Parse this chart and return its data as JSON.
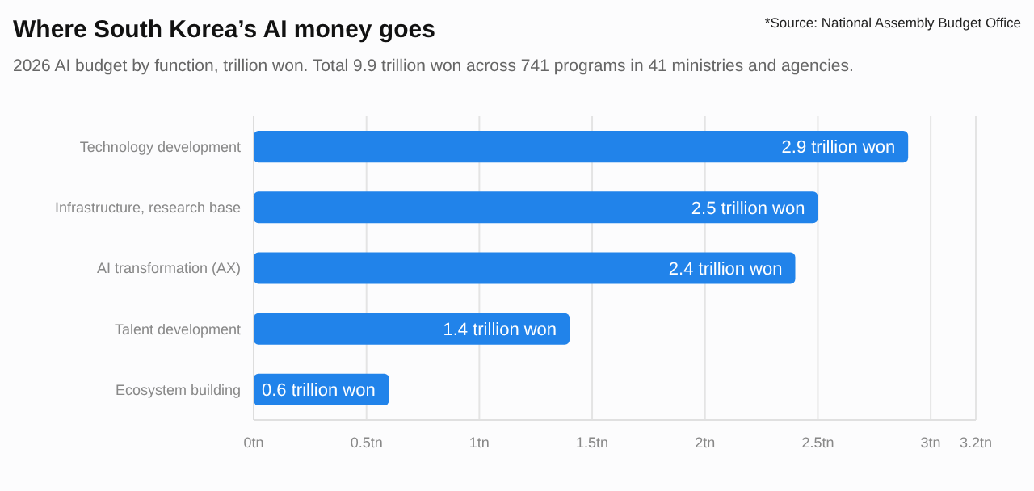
{
  "chart_data": {
    "type": "bar",
    "orientation": "horizontal",
    "title": "Where South Korea’s AI money goes",
    "subtitle": "2026 AI budget by function, trillion won. Total 9.9 trillion won across 741 programs in 41 ministries and agencies.",
    "annotations": [
      "*Source: National Assembly Budget Office"
    ],
    "categories": [
      "Technology development",
      "Infrastructure, research base",
      "AI transformation (AX)",
      "Talent development",
      "Ecosystem building"
    ],
    "values": [
      2.9,
      2.5,
      2.4,
      1.4,
      0.6
    ],
    "value_labels": [
      "2.9 trillion won",
      "2.5 trillion won",
      "2.4 trillion won",
      "1.4 trillion won",
      "0.6 trillion won"
    ],
    "color": "#2183ea",
    "xlim": [
      0,
      3.2
    ],
    "xticks": [
      {
        "value": 0,
        "label": "0tn"
      },
      {
        "value": 0.5,
        "label": "0.5tn"
      },
      {
        "value": 1,
        "label": "1tn"
      },
      {
        "value": 1.5,
        "label": "1.5tn"
      },
      {
        "value": 2,
        "label": "2tn"
      },
      {
        "value": 2.5,
        "label": "2.5tn"
      },
      {
        "value": 3,
        "label": "3tn"
      },
      {
        "value": 3.2,
        "label": "3.2tn"
      }
    ],
    "grid": "x"
  }
}
